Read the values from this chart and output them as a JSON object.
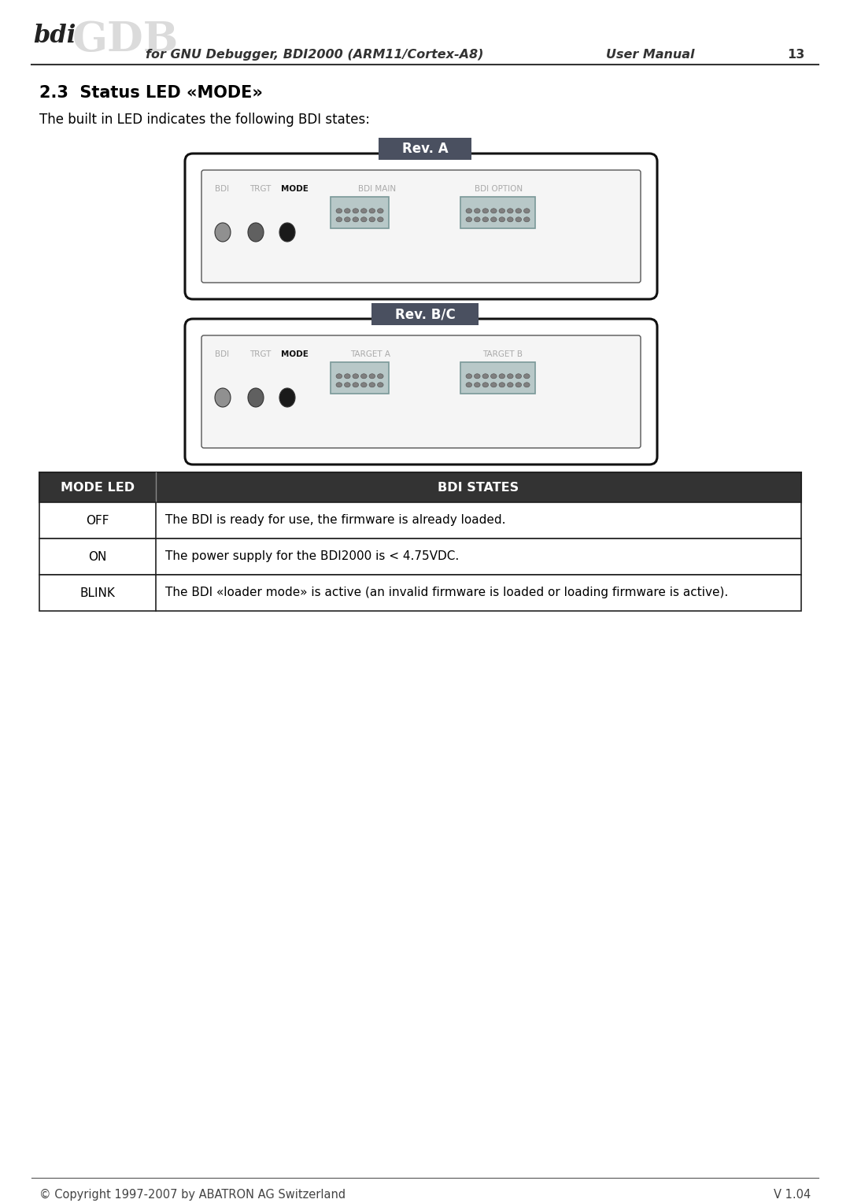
{
  "page_title_left": "for GNU Debugger, BDI2000 (ARM11/Cortex-A8)",
  "page_title_right": "User Manual",
  "page_number": "13",
  "section_title": "2.3  Status LED «MODE»",
  "section_subtitle": "The built in LED indicates the following BDI states:",
  "rev_a_label": "Rev. A",
  "rev_a_labels": [
    "BDI",
    "TRGT",
    "MODE",
    "BDI MAIN",
    "BDI OPTION"
  ],
  "rev_bc_label": "Rev. B/C",
  "rev_bc_labels": [
    "BDI",
    "TRGT",
    "MODE",
    "TARGET A",
    "TARGET B"
  ],
  "table_header": [
    "MODE LED",
    "BDI STATES"
  ],
  "table_rows": [
    [
      "OFF",
      "The BDI is ready for use, the firmware is already loaded."
    ],
    [
      "ON",
      "The power supply for the BDI2000 is < 4.75VDC."
    ],
    [
      "BLINK",
      "The BDI «loader mode» is active (an invalid firmware is loaded or loading firmware is active)."
    ]
  ],
  "copyright": "© Copyright 1997-2007 by ABATRON AG Switzerland",
  "version": "V 1.04",
  "bg_color": "#ffffff",
  "rev_badge_color": "#4a5060",
  "rev_badge_text_color": "#ffffff",
  "device_border_color": "#111111",
  "device_bg_color": "#ffffff",
  "inner_border_color": "#555555",
  "inner_bg_color": "#f5f5f5",
  "led_gray_color": "#909090",
  "led_dark_color": "#606060",
  "led_black_color": "#1a1a1a",
  "connector_fill": "#b8c8c8",
  "connector_border": "#7a9898",
  "connector_dot": "#808080",
  "connector_tab_fill": "#d0d8d8",
  "table_header_bg": "#333333",
  "table_header_text": "#ffffff",
  "table_border_color": "#222222",
  "label_gray": "#aaaaaa",
  "label_black": "#111111",
  "footer_color": "#444444",
  "header_text_color": "#333333"
}
